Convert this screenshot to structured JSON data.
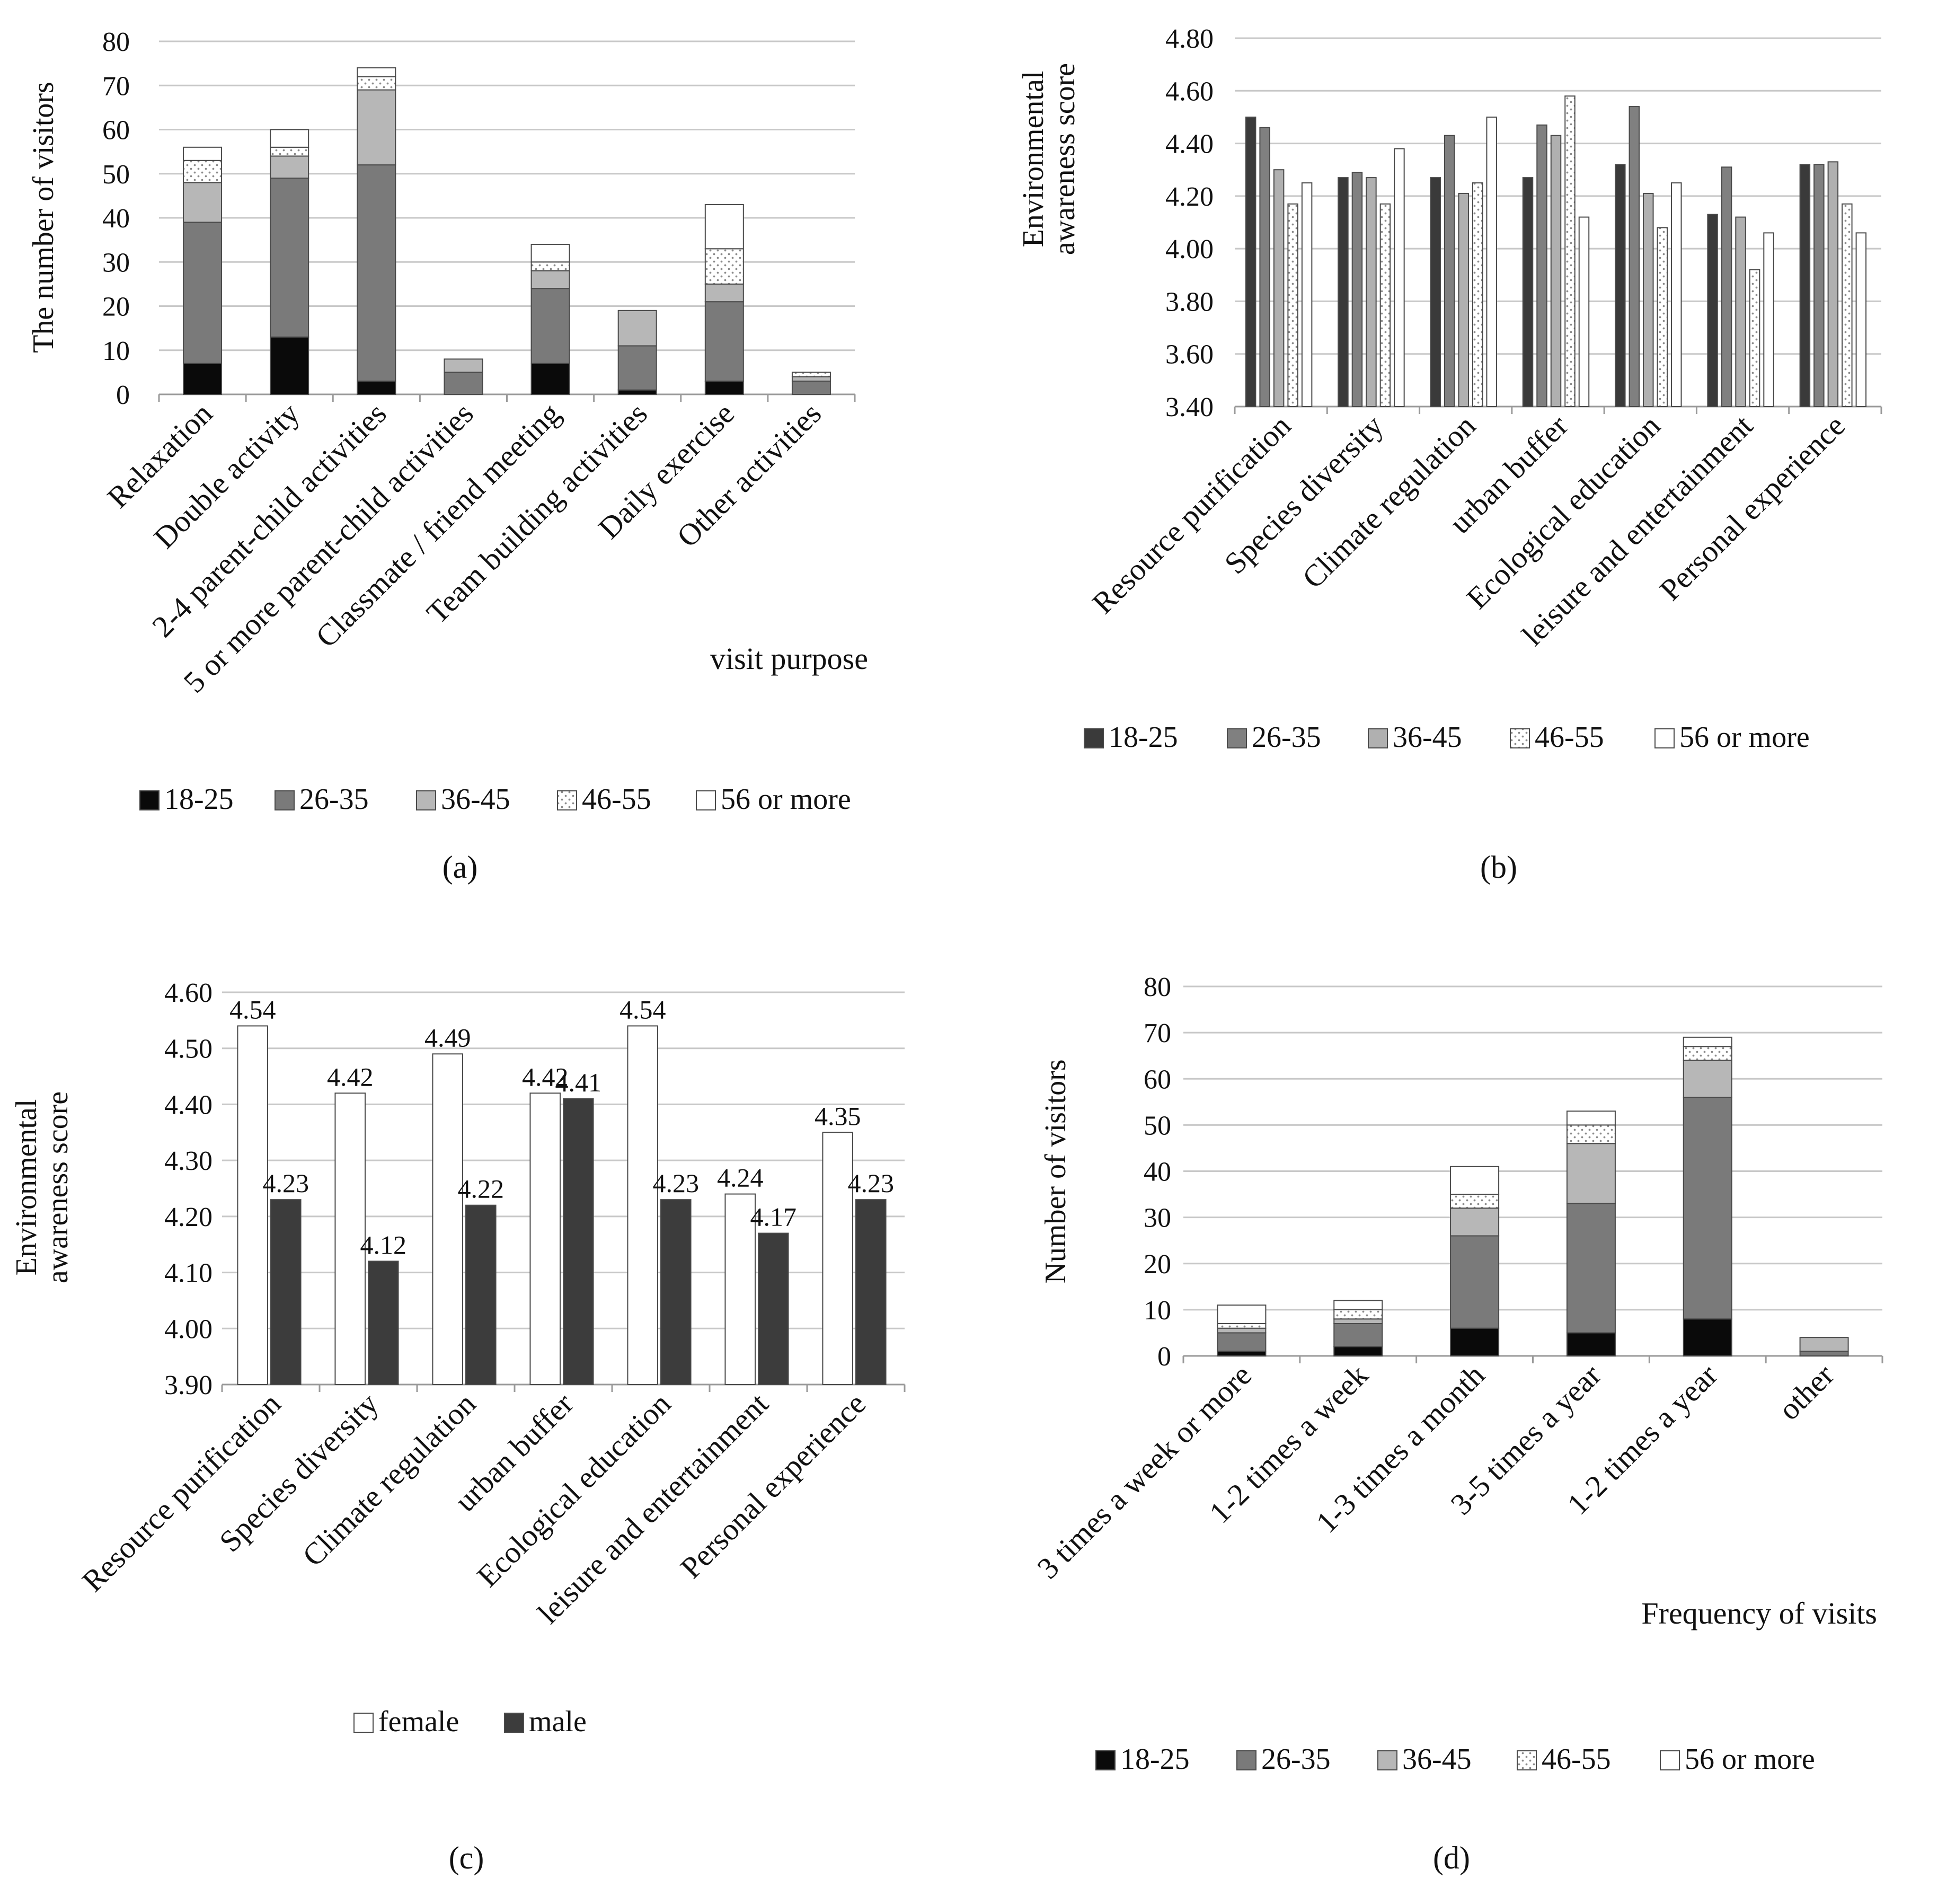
{
  "colors": {
    "18-25": "#0a0a0a",
    "26-35": "#7a7a7a",
    "36-45": "#b7b7b7",
    "46-55": "#ffffff",
    "56 or more": "#ffffff",
    "b_18-25": "#3a3a3a",
    "b_26-35": "#808080",
    "b_36-45": "#b0b0b0",
    "female": "#ffffff",
    "male": "#3c3c3c",
    "grid": "#c8c8c8",
    "axis": "#9a9a9a",
    "border": "#4a4a4a"
  },
  "chart_data": [
    {
      "id": "a",
      "panel_label": "(a)",
      "type": "bar",
      "stacked": true,
      "title": "",
      "xlabel": "visit purpose",
      "ylabel": "The number of visitors",
      "ylim": [
        0,
        80
      ],
      "yticks": [
        "0",
        "10",
        "20",
        "30",
        "40",
        "50",
        "60",
        "70",
        "80"
      ],
      "categories": [
        "Relaxation",
        "Double activity",
        "2-4 parent-child activities",
        "5 or more parent-child activities",
        "Classmate / friend meeting",
        "Team building activities",
        "Daily exercise",
        "Other activities"
      ],
      "series": [
        {
          "name": "18-25",
          "values": [
            7,
            13,
            3,
            0,
            7,
            1,
            3,
            0
          ]
        },
        {
          "name": "26-35",
          "values": [
            32,
            36,
            49,
            5,
            17,
            10,
            18,
            3
          ]
        },
        {
          "name": "36-45",
          "values": [
            9,
            5,
            17,
            3,
            4,
            8,
            4,
            1
          ]
        },
        {
          "name": "46-55",
          "values": [
            5,
            2,
            3,
            0,
            2,
            0,
            8,
            1
          ]
        },
        {
          "name": "56 or more",
          "values": [
            3,
            4,
            2,
            0,
            4,
            0,
            10,
            0
          ]
        }
      ],
      "legend": [
        "18-25",
        "26-35",
        "36-45",
        "46-55",
        "56 or more"
      ],
      "legend_position": "bottom"
    },
    {
      "id": "b",
      "panel_label": "(b)",
      "type": "bar",
      "stacked": false,
      "title": "",
      "xlabel": "",
      "ylabel": "Environmental awareness score",
      "ylim": [
        3.4,
        4.8
      ],
      "yticks": [
        "3.40",
        "3.60",
        "3.80",
        "4.00",
        "4.20",
        "4.40",
        "4.60",
        "4.80"
      ],
      "categories": [
        "Resource purification",
        "Species diversity",
        "Climate regulation",
        "urban buffer",
        "Ecological education",
        "leisure and entertainment",
        "Personal experience"
      ],
      "series": [
        {
          "name": "18-25",
          "values": [
            4.5,
            4.27,
            4.27,
            4.27,
            4.32,
            4.13,
            4.32
          ]
        },
        {
          "name": "26-35",
          "values": [
            4.46,
            4.29,
            4.43,
            4.47,
            4.54,
            4.31,
            4.32
          ]
        },
        {
          "name": "36-45",
          "values": [
            4.3,
            4.27,
            4.21,
            4.43,
            4.21,
            4.12,
            4.33
          ]
        },
        {
          "name": "46-55",
          "values": [
            4.17,
            4.17,
            4.25,
            4.58,
            4.08,
            3.92,
            4.17
          ]
        },
        {
          "name": "56 or more",
          "values": [
            4.25,
            4.38,
            4.5,
            4.12,
            4.25,
            4.06,
            4.06
          ]
        }
      ],
      "legend": [
        "18-25",
        "26-35",
        "36-45",
        "46-55",
        "56 or more"
      ],
      "legend_position": "bottom"
    },
    {
      "id": "c",
      "panel_label": "(c)",
      "type": "bar",
      "stacked": false,
      "title": "",
      "xlabel": "",
      "ylabel": "Environmental awareness score",
      "ylim": [
        3.9,
        4.6
      ],
      "yticks": [
        "3.90",
        "4.00",
        "4.10",
        "4.20",
        "4.30",
        "4.40",
        "4.50",
        "4.60"
      ],
      "categories": [
        "Resource purification",
        "Species diversity",
        "Climate regulation",
        "urban buffer",
        "Ecological education",
        "leisure and entertainment",
        "Personal experience"
      ],
      "series": [
        {
          "name": "female",
          "values": [
            4.54,
            4.42,
            4.49,
            4.42,
            4.54,
            4.24,
            4.35
          ],
          "labels": [
            "4.54",
            "4.42",
            "4.49",
            "4.42",
            "4.54",
            "4.24",
            "4.35"
          ]
        },
        {
          "name": "male",
          "values": [
            4.23,
            4.12,
            4.22,
            4.41,
            4.23,
            4.17,
            4.23
          ],
          "labels": [
            "4.23",
            "4.12",
            "4.22",
            "4.41",
            "4.23",
            "4.17",
            "4.23"
          ]
        }
      ],
      "legend": [
        "female",
        "male"
      ],
      "legend_position": "bottom"
    },
    {
      "id": "d",
      "panel_label": "(d)",
      "type": "bar",
      "stacked": true,
      "title": "",
      "xlabel": "Frequency of visits",
      "ylabel": "Number of visitors",
      "ylim": [
        0,
        80
      ],
      "yticks": [
        "0",
        "10",
        "20",
        "30",
        "40",
        "50",
        "60",
        "70",
        "80"
      ],
      "categories": [
        "3 times  a week or more",
        "1-2 times a week",
        "1-3 times a month",
        "3-5 times a year",
        "1-2  times a year",
        "other"
      ],
      "series": [
        {
          "name": "18-25",
          "values": [
            1,
            2,
            6,
            5,
            8,
            0
          ]
        },
        {
          "name": "26-35",
          "values": [
            4,
            5,
            20,
            28,
            48,
            1
          ]
        },
        {
          "name": "36-45",
          "values": [
            1,
            1,
            6,
            13,
            8,
            3
          ]
        },
        {
          "name": "46-55",
          "values": [
            1,
            2,
            3,
            4,
            3,
            0
          ]
        },
        {
          "name": "56 or more",
          "values": [
            4,
            2,
            6,
            3,
            2,
            0
          ]
        }
      ],
      "legend": [
        "18-25",
        "26-35",
        "36-45",
        "46-55",
        "56 or more"
      ],
      "legend_position": "bottom"
    }
  ]
}
